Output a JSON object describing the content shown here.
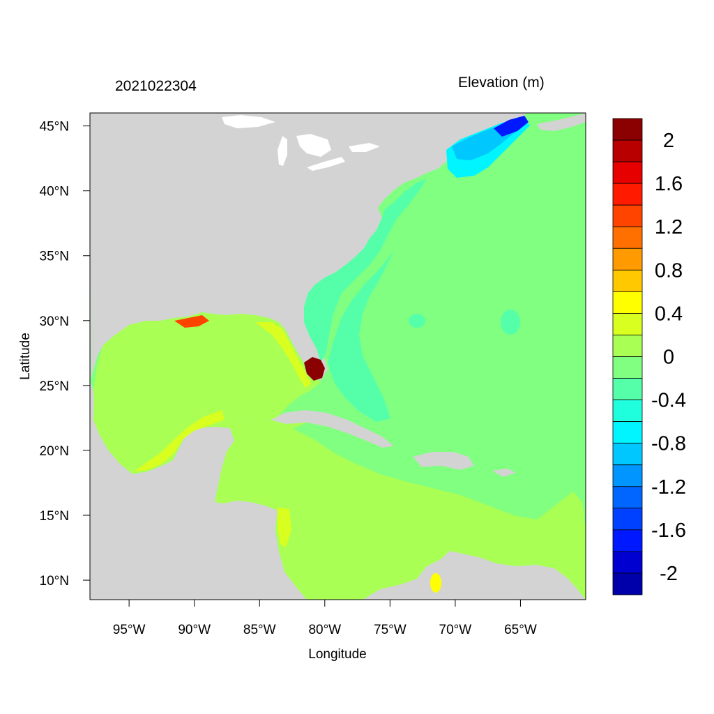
{
  "header": {
    "timestamp": "2021022304",
    "variable": "Elevation (m)"
  },
  "axes": {
    "xlabel": "Longitude",
    "ylabel": "Latitude",
    "lon_range": [
      -98,
      -60
    ],
    "lat_range": [
      8.5,
      46
    ],
    "lon_ticks": [
      {
        "value": -95,
        "label": "95°W"
      },
      {
        "value": -90,
        "label": "90°W"
      },
      {
        "value": -85,
        "label": "85°W"
      },
      {
        "value": -80,
        "label": "80°W"
      },
      {
        "value": -75,
        "label": "75°W"
      },
      {
        "value": -70,
        "label": "70°W"
      },
      {
        "value": -65,
        "label": "65°W"
      }
    ],
    "lat_ticks": [
      {
        "value": 45,
        "label": "45°N"
      },
      {
        "value": 40,
        "label": "40°N"
      },
      {
        "value": 35,
        "label": "35°N"
      },
      {
        "value": 30,
        "label": "30°N"
      },
      {
        "value": 25,
        "label": "25°N"
      },
      {
        "value": 20,
        "label": "20°N"
      },
      {
        "value": 15,
        "label": "15°N"
      },
      {
        "value": 10,
        "label": "10°N"
      }
    ]
  },
  "colorbar": {
    "colors_top_to_bottom": [
      "#8b0000",
      "#b90000",
      "#e60000",
      "#ff1a00",
      "#ff4400",
      "#ff7000",
      "#ff9a00",
      "#ffc800",
      "#ffff00",
      "#d9ff20",
      "#aaff55",
      "#80ff80",
      "#55ffaa",
      "#20ffdd",
      "#00f5ff",
      "#00c8ff",
      "#0095ff",
      "#0066ff",
      "#0040ff",
      "#0018ff",
      "#0000d0",
      "#0000aa"
    ],
    "labels": [
      {
        "value": 2,
        "label": "2"
      },
      {
        "value": 1.6,
        "label": "1.6"
      },
      {
        "value": 1.2,
        "label": "1.2"
      },
      {
        "value": 0.8,
        "label": "0.8"
      },
      {
        "value": 0.4,
        "label": "0.4"
      },
      {
        "value": 0,
        "label": "0"
      },
      {
        "value": -0.4,
        "label": "-0.4"
      },
      {
        "value": -0.8,
        "label": "-0.8"
      },
      {
        "value": -1.2,
        "label": "-1.2"
      },
      {
        "value": -1.6,
        "label": "-1.6"
      },
      {
        "value": -2,
        "label": "-2"
      }
    ]
  },
  "colors": {
    "land": "#d3d3d3",
    "lakes": "#ffffff",
    "ocean_neg02": "#80ff80",
    "gulf_pos02": "#aaff55",
    "shelf_neg04": "#55ffaa",
    "pos04": "#d9ff20",
    "pos08": "#ffff00",
    "high": "#8b0000",
    "neg_ne": "#00c8ff"
  }
}
